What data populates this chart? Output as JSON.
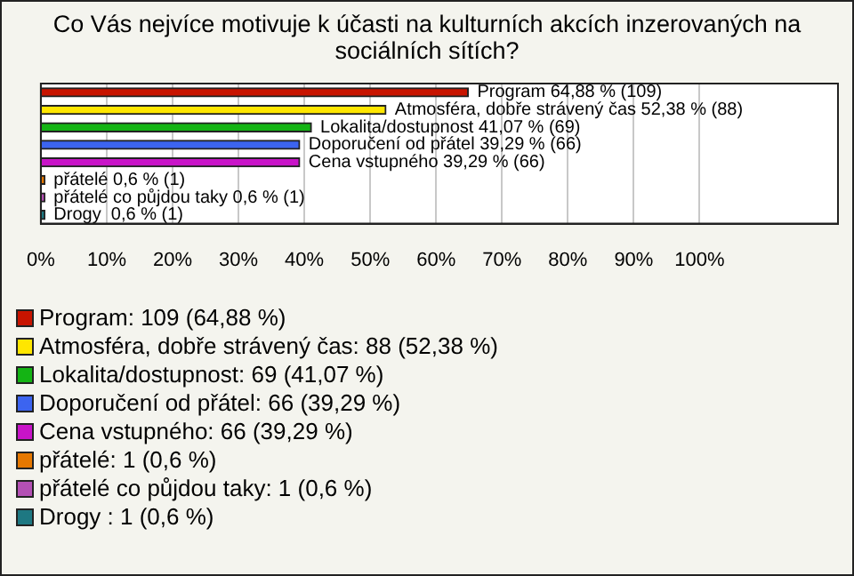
{
  "chart_data": {
    "type": "bar",
    "orientation": "horizontal",
    "title": "Co Vás nejvíce motivuje k účasti na kulturních akcích inzerovaných na sociálních sítích?",
    "categories": [
      null,
      null,
      null,
      null,
      null,
      null,
      null,
      null
    ],
    "values": [
      64.88,
      52.38,
      41.07,
      39.29,
      39.29,
      0.6,
      0.6,
      0.6
    ],
    "colors": [
      "#c81400",
      "#ffe600",
      "#14b414",
      "#3c64f0",
      "#c814c8",
      "#e67800",
      "#b450b4",
      "#1e7882"
    ],
    "value_labels": [
      "Program 64,88 % (109)",
      "Atmosféra, dobře strávený čas 52,38 % (88)",
      "Lokalita/dostupnost 41,07 % (69)",
      "Doporučení od přátel 39,29 % (66)",
      "Cena vstupného 39,29 % (66)",
      "přátelé 0,6 % (1)",
      "přátelé co půjdou taky 0,6 % (1)",
      "Drogy  0,6 % (1)"
    ],
    "xlim": [
      0,
      121
    ],
    "xticks": [
      {
        "value": 0,
        "label": "0%"
      },
      {
        "value": 10,
        "label": "10%"
      },
      {
        "value": 20,
        "label": "20%"
      },
      {
        "value": 30,
        "label": "30%"
      },
      {
        "value": 40,
        "label": "40%"
      },
      {
        "value": 50,
        "label": "50%"
      },
      {
        "value": 60,
        "label": "60%"
      },
      {
        "value": 70,
        "label": "70%"
      },
      {
        "value": 80,
        "label": "80%"
      },
      {
        "value": 90,
        "label": "90%"
      },
      {
        "value": 100,
        "label": "100%"
      }
    ],
    "grid": "x",
    "tick_labels": "x",
    "annotations": [
      "Program: 109 (64,88 %)",
      "Atmosféra, dobře strávený čas: 88 (52,38 %)",
      "Lokalita/dostupnost: 69 (41,07 %)",
      "Doporučení od přátel: 66 (39,29 %)",
      "Cena vstupného: 66 (39,29 %)",
      "přátelé: 1 (0,6 %)",
      "přátelé co půjdou taky: 1 (0,6 %)",
      "Drogy : 1 (0,6 %)"
    ]
  }
}
